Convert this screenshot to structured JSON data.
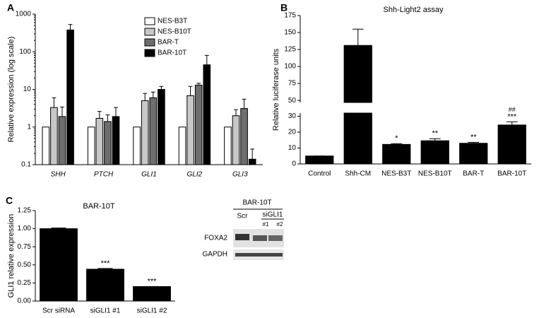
{
  "chart_data": [
    {
      "type": "bar",
      "panel_label": "A",
      "ylabel": "Relative expression (log scale)",
      "log": true,
      "categories": [
        "SHH",
        "PTCH",
        "GLI1",
        "GLI2",
        "GLI3"
      ],
      "series": [
        {
          "name": "NES-B3T",
          "color": "#ffffff",
          "values": [
            1,
            1,
            1,
            1,
            1
          ]
        },
        {
          "name": "NES-B10T",
          "color": "#c8c8c8",
          "values": [
            3.3,
            1.7,
            5,
            6.8,
            2.0
          ],
          "errors": [
            2.7,
            0.9,
            2.8,
            5.2,
            0.9
          ]
        },
        {
          "name": "BAR-T",
          "color": "#6e6e6e",
          "values": [
            1.9,
            1.4,
            6,
            13,
            3.1
          ],
          "errors": [
            1.5,
            0.7,
            2.5,
            1.5,
            2.4
          ]
        },
        {
          "name": "BAR-10T",
          "color": "#000000",
          "values": [
            380,
            1.9,
            10,
            45,
            0.14
          ],
          "errors": [
            150,
            1.4,
            2,
            35,
            0.12
          ]
        }
      ],
      "ylim": [
        0.1,
        1000
      ],
      "yticks": [
        0.1,
        1,
        10,
        100,
        1000
      ],
      "legend": "top-center"
    },
    {
      "type": "bar",
      "panel_label": "B",
      "title": "Shh-Light2 assay",
      "ylabel": "Relative luciferase units",
      "categories": [
        "Control",
        "Shh-CM",
        "NES-B3T",
        "NES-B10T",
        "BAR-T",
        "BAR-10T"
      ],
      "values": [
        5,
        131,
        12.3,
        14.6,
        13,
        24.5
      ],
      "errors": [
        0,
        24,
        0.5,
        1.3,
        0.6,
        2
      ],
      "significance": [
        null,
        null,
        "*",
        "**",
        "**",
        "***"
      ],
      "significance_2": [
        null,
        null,
        null,
        null,
        null,
        "##"
      ],
      "color": "#000000",
      "ylim": [
        0,
        175
      ],
      "ybreak": [
        32,
        47
      ],
      "yticks": [
        0,
        10,
        20,
        30,
        50,
        75,
        100,
        125,
        150,
        175
      ]
    },
    {
      "type": "bar",
      "panel_label": "C",
      "title": "BAR-10T",
      "ylabel": "GLI1 relative expression",
      "categories": [
        "Scr siRNA",
        "siGLI1 #1",
        "siGLI1 #2"
      ],
      "values": [
        1.0,
        0.44,
        0.2
      ],
      "errors": [
        0.01,
        0.01,
        0
      ],
      "significance": [
        null,
        "***",
        "***"
      ],
      "color": "#000000",
      "ylim": [
        0,
        1.25
      ],
      "yticks": [
        {
          "value": 0,
          "label": "0.00"
        },
        {
          "value": 0.25,
          "label": "0.25"
        },
        {
          "value": 0.5,
          "label": "0.50"
        },
        {
          "value": 0.75,
          "label": "0.75"
        },
        {
          "value": 1,
          "label": "1.00"
        },
        {
          "value": 1.25,
          "label": "1.25"
        }
      ]
    }
  ],
  "blot": {
    "title": "BAR-10T",
    "lanes": [
      "Scr",
      "siGLI1"
    ],
    "sublanes": [
      "#1",
      "#2"
    ],
    "rows": [
      "FOXA2",
      "GAPDH"
    ]
  }
}
